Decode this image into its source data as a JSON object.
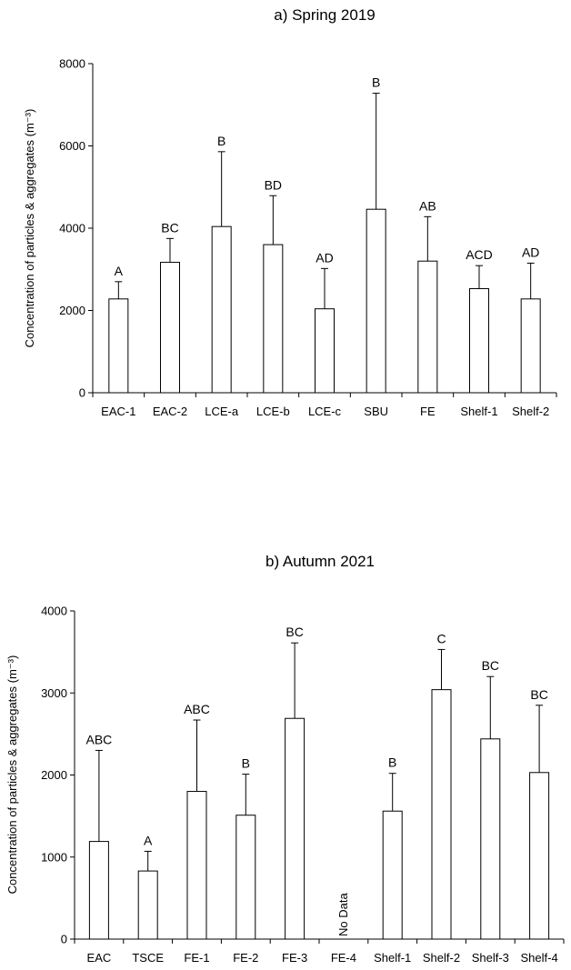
{
  "chart_data": [
    {
      "type": "bar",
      "title": "a) Spring 2019",
      "ylabel": "Concentration of particles & aggregates (m⁻³)",
      "ylim": [
        0,
        8000
      ],
      "yticks": [
        0,
        2000,
        4000,
        6000,
        8000
      ],
      "categories": [
        "EAC-1",
        "EAC-2",
        "LCE-a",
        "LCE-b",
        "LCE-c",
        "SBU",
        "FE",
        "Shelf-1",
        "Shelf-2"
      ],
      "values": [
        2280,
        3170,
        4040,
        3600,
        2040,
        4460,
        3200,
        2530,
        2280
      ],
      "errors": [
        420,
        580,
        1820,
        1190,
        980,
        2820,
        1080,
        560,
        870
      ],
      "labels": [
        "A",
        "BC",
        "B",
        "BD",
        "AD",
        "B",
        "AB",
        "ACD",
        "AD"
      ],
      "notes": [
        "",
        "",
        "",
        "",
        "",
        "",
        "",
        "",
        ""
      ]
    },
    {
      "type": "bar",
      "title": "b) Autumn 2021",
      "ylabel": "Concentration of particles & aggregates (m⁻³)",
      "ylim": [
        0,
        4000
      ],
      "yticks": [
        0,
        1000,
        2000,
        3000,
        4000
      ],
      "categories": [
        "EAC",
        "TSCE",
        "FE-1",
        "FE-2",
        "FE-3",
        "FE-4",
        "Shelf-1",
        "Shelf-2",
        "Shelf-3",
        "Shelf-4"
      ],
      "values": [
        1190,
        830,
        1800,
        1510,
        2690,
        null,
        1560,
        3040,
        2440,
        2030
      ],
      "errors": [
        1110,
        240,
        870,
        500,
        920,
        null,
        460,
        490,
        760,
        820
      ],
      "labels": [
        "ABC",
        "A",
        "ABC",
        "B",
        "BC",
        "",
        "B",
        "C",
        "BC",
        "BC"
      ],
      "notes": [
        "",
        "",
        "",
        "",
        "",
        "No Data",
        "",
        "",
        "",
        ""
      ]
    }
  ]
}
